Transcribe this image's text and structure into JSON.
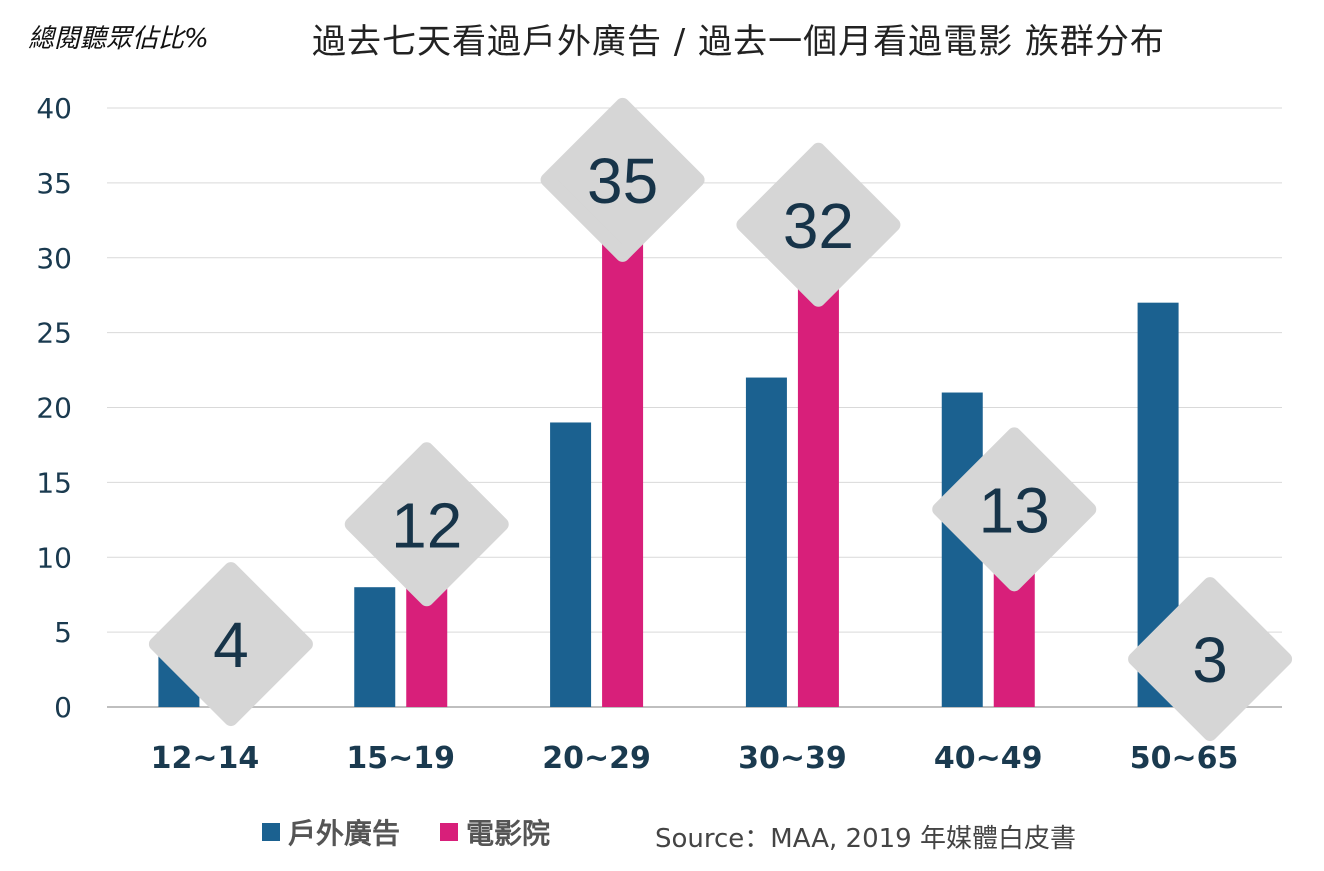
{
  "chart_data": {
    "type": "bar",
    "ylabel": "總閱聽眾佔比%",
    "title": "過去七天看過戶外廣告 /  過去一個月看過電影  族群分布",
    "categories": [
      "12~14",
      "15~19",
      "20~29",
      "30~39",
      "40~49",
      "50~65"
    ],
    "series": [
      {
        "name": "戶外廣告",
        "color": "#1B6190",
        "values": [
          3.5,
          8,
          19,
          22,
          21,
          27
        ]
      },
      {
        "name": "電影院",
        "color": "#D81F7A",
        "values": [
          4,
          12,
          35,
          32,
          13,
          3
        ]
      }
    ],
    "data_labels": [
      "4",
      "12",
      "35",
      "32",
      "13",
      "3"
    ],
    "label_series": "電影院",
    "yticks": [
      "0",
      "5",
      "10",
      "15",
      "20",
      "25",
      "30",
      "35",
      "40"
    ],
    "ylim": [
      0,
      40
    ],
    "grid": true,
    "legend_position": "bottom-left"
  },
  "source": "Source：MAA, 2019 年媒體白皮書"
}
